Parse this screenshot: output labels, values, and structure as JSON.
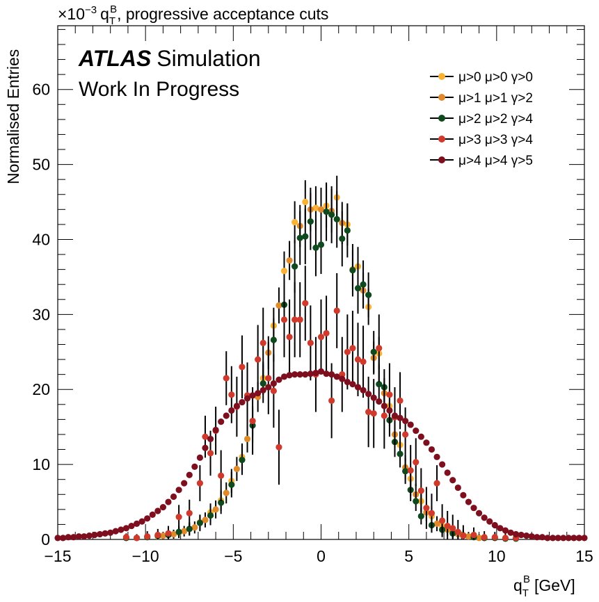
{
  "chart_data": {
    "type": "scatter",
    "title": "q_T^B, progressive acceptance cuts",
    "title_parts": {
      "scale": "×10",
      "scale_exp": "−3",
      "var": "q",
      "var_sub": "T",
      "var_sup": "B",
      "rest": ", progressive acceptance cuts"
    },
    "ylabel": "Normalised Entries",
    "xlabel": "q_T^B [GeV]",
    "xlabel_parts": {
      "var": "q",
      "var_sub": "T",
      "var_sup": "B",
      "unit": "[GeV]"
    },
    "xlim": [
      -15,
      15
    ],
    "ylim": [
      0,
      68.5
    ],
    "y_scale_note": "×10^−3",
    "x_ticks": [
      -15,
      -10,
      -5,
      0,
      5,
      10,
      15
    ],
    "x_tick_labels": [
      "−15",
      "−10",
      "−5",
      "0",
      "5",
      "10",
      "15"
    ],
    "y_ticks": [
      0,
      10,
      20,
      30,
      40,
      50,
      60
    ],
    "y_tick_labels": [
      "0",
      "10",
      "20",
      "30",
      "40",
      "50",
      "60"
    ],
    "grid": false,
    "legend_position": "top-right",
    "atlas_label": {
      "bold": "ATLAS",
      "rest": "Simulation",
      "line2": "Work In Progress"
    },
    "colors": {
      "mu0": "#f9b233",
      "mu1": "#e08a2c",
      "mu2": "#0f4a1f",
      "mu3": "#cf3a2c",
      "mu4": "#7d0f1f"
    },
    "series": [
      {
        "name": "μ>0 μ>0 γ>0",
        "color": "#f9b233",
        "x": [
          -9.3,
          -8.7,
          -8.1,
          -7.5,
          -6.9,
          -6.3,
          -5.7,
          -5.1,
          -4.5,
          -3.9,
          -3.3,
          -2.7,
          -2.1,
          -1.5,
          -0.9,
          -0.3,
          0.3,
          0.9,
          1.5,
          2.1,
          2.7,
          3.3,
          3.9,
          4.5,
          5.1,
          5.7,
          6.3,
          6.9,
          7.5,
          8.1,
          8.7,
          9.3
        ],
        "y": [
          0.4,
          0.6,
          0.9,
          1.4,
          2.3,
          3.6,
          5.2,
          7.8,
          11.0,
          15.8,
          21.5,
          28.5,
          35.8,
          42.3,
          45.0,
          44.2,
          44.5,
          45.6,
          42.0,
          36.4,
          31.0,
          24.8,
          17.8,
          12.6,
          8.1,
          5.1,
          3.1,
          1.8,
          1.0,
          0.6,
          0.4,
          0.2
        ],
        "err": [
          0.5,
          0.6,
          0.7,
          0.8,
          1.0,
          1.2,
          1.4,
          1.6,
          1.8,
          2.0,
          2.2,
          2.4,
          2.6,
          2.8,
          2.9,
          2.9,
          2.9,
          2.9,
          2.8,
          2.6,
          2.4,
          2.2,
          2.0,
          1.8,
          1.6,
          1.4,
          1.2,
          1.0,
          0.8,
          0.7,
          0.6,
          0.5
        ]
      },
      {
        "name": "μ>1 μ>1 γ>2",
        "color": "#e08a2c",
        "x": [
          -9.0,
          -8.4,
          -7.8,
          -7.2,
          -6.6,
          -6.0,
          -5.4,
          -4.8,
          -4.2,
          -3.6,
          -3.0,
          -2.4,
          -1.8,
          -1.2,
          -0.6,
          0.0,
          0.6,
          1.2,
          1.8,
          2.4,
          3.0,
          3.6,
          4.2,
          4.8,
          5.4,
          6.0,
          6.6,
          7.2,
          7.8,
          8.4,
          9.0
        ],
        "y": [
          0.5,
          0.7,
          1.1,
          1.6,
          2.6,
          4.0,
          6.2,
          9.4,
          13.4,
          19.0,
          24.9,
          31.2,
          37.2,
          41.8,
          44.0,
          44.0,
          43.8,
          42.2,
          36.0,
          33.2,
          24.2,
          19.5,
          14.0,
          9.6,
          6.0,
          3.6,
          2.1,
          1.3,
          0.7,
          0.4,
          0.2
        ],
        "err": [
          0.5,
          0.6,
          0.7,
          0.8,
          1.0,
          1.2,
          1.4,
          1.6,
          1.8,
          2.0,
          2.2,
          2.4,
          2.6,
          2.8,
          2.9,
          2.9,
          2.9,
          2.8,
          2.6,
          2.4,
          2.2,
          2.0,
          1.8,
          1.6,
          1.4,
          1.2,
          1.0,
          0.8,
          0.7,
          0.6,
          0.5
        ]
      },
      {
        "name": "μ>2 μ>2 γ>4",
        "color": "#0f4a1f",
        "x": [
          -11.1,
          -10.5,
          -9.9,
          -9.3,
          -8.7,
          -8.1,
          -7.5,
          -6.9,
          -6.3,
          -5.7,
          -5.1,
          -4.5,
          -3.9,
          -3.3,
          -2.7,
          -2.1,
          -1.5,
          -1.2,
          -0.9,
          -0.6,
          -0.3,
          0.0,
          0.3,
          0.6,
          0.9,
          1.2,
          1.5,
          1.8,
          2.1,
          2.4,
          2.7,
          3.0,
          3.3,
          3.6,
          3.9,
          4.2,
          4.5,
          4.8,
          5.1,
          5.4,
          5.7,
          6.3,
          6.9,
          7.5,
          8.1,
          8.7,
          9.3,
          9.9,
          10.5,
          11.1
        ],
        "y": [
          0.2,
          0.2,
          0.3,
          0.5,
          0.6,
          1.0,
          1.4,
          2.2,
          3.2,
          4.9,
          7.3,
          10.6,
          15.2,
          20.8,
          26.6,
          31.3,
          36.4,
          40.2,
          40.4,
          42.4,
          38.9,
          39.3,
          43.7,
          43.3,
          42.7,
          40.1,
          41.2,
          35.9,
          33.5,
          34.0,
          32.6,
          25.0,
          20.7,
          20.3,
          15.9,
          13.0,
          11.4,
          9.1,
          6.6,
          5.1,
          3.1,
          1.9,
          1.3,
          0.8,
          0.5,
          0.3,
          0.2,
          0.2,
          0.1,
          0.1
        ],
        "err": [
          0.4,
          0.4,
          0.5,
          0.6,
          0.7,
          0.8,
          0.9,
          1.1,
          1.3,
          1.5,
          1.7,
          2.0,
          2.3,
          2.6,
          2.9,
          3.2,
          3.5,
          3.6,
          3.7,
          3.8,
          3.8,
          3.9,
          3.9,
          3.8,
          3.8,
          3.7,
          3.6,
          3.5,
          3.4,
          3.2,
          3.0,
          2.8,
          2.6,
          2.4,
          2.2,
          2.0,
          1.8,
          1.7,
          1.5,
          1.3,
          1.1,
          0.9,
          0.8,
          0.7,
          0.6,
          0.5,
          0.5,
          0.4,
          0.4,
          0.4
        ]
      },
      {
        "name": "μ>3 μ>3 γ>4",
        "color": "#cf3a2c",
        "x": [
          -11.1,
          -10.5,
          -9.9,
          -9.3,
          -8.7,
          -8.1,
          -7.5,
          -6.9,
          -6.6,
          -6.3,
          -6.0,
          -5.7,
          -5.4,
          -5.1,
          -4.8,
          -4.5,
          -4.2,
          -3.9,
          -3.6,
          -3.3,
          -3.0,
          -2.7,
          -2.4,
          -2.1,
          -1.8,
          -1.5,
          -1.2,
          -0.9,
          -0.6,
          -0.3,
          0.0,
          0.3,
          0.6,
          0.9,
          1.2,
          1.5,
          1.8,
          2.1,
          2.4,
          2.7,
          3.0,
          3.3,
          3.6,
          3.9,
          4.2,
          4.5,
          4.8,
          5.1,
          5.4,
          5.7,
          6.0,
          6.3,
          6.6,
          6.9,
          7.2,
          7.5,
          7.8,
          8.1,
          8.7,
          9.3,
          9.9,
          10.5,
          11.1
        ],
        "y": [
          0.3,
          0.2,
          0.4,
          0.6,
          0.8,
          3.0,
          3.5,
          7.5,
          13.7,
          11.5,
          14.5,
          8.5,
          21.5,
          19.3,
          17.7,
          23.0,
          19.2,
          15.8,
          24.0,
          26.2,
          21.5,
          19.8,
          12.3,
          29.3,
          27.0,
          29.3,
          29.3,
          31.5,
          26.2,
          22.0,
          27.0,
          27.5,
          18.5,
          30.5,
          22.0,
          25.0,
          25.5,
          24.0,
          23.7,
          17.0,
          16.8,
          25.5,
          16.5,
          19.3,
          16.3,
          18.5,
          14.0,
          9.2,
          10.3,
          6.5,
          4.2,
          3.5,
          7.5,
          2.5,
          1.8,
          1.5,
          1.0,
          0.5,
          0.6,
          0.3,
          0.3,
          0.2,
          0.2
        ],
        "err": [
          0.5,
          0.5,
          0.7,
          0.8,
          1.0,
          1.6,
          1.8,
          2.4,
          2.8,
          3.0,
          3.2,
          3.4,
          3.6,
          3.8,
          4.0,
          4.2,
          4.4,
          4.5,
          4.6,
          4.7,
          4.8,
          4.9,
          5.0,
          5.0,
          5.0,
          5.0,
          5.0,
          5.0,
          5.0,
          5.0,
          5.0,
          5.0,
          5.0,
          5.0,
          5.0,
          5.0,
          5.0,
          4.9,
          4.8,
          4.7,
          4.6,
          4.5,
          4.4,
          4.2,
          4.0,
          3.8,
          3.6,
          3.4,
          3.2,
          3.0,
          2.8,
          2.6,
          2.4,
          2.2,
          2.0,
          1.8,
          1.6,
          1.4,
          1.0,
          0.8,
          0.7,
          0.6,
          0.5
        ]
      },
      {
        "name": "μ>4 μ>4 γ>5",
        "color": "#7d0f1f",
        "x": [
          -15.0,
          -14.7,
          -14.4,
          -14.1,
          -13.8,
          -13.5,
          -13.2,
          -12.9,
          -12.6,
          -12.3,
          -12.0,
          -11.7,
          -11.4,
          -11.1,
          -10.8,
          -10.5,
          -10.2,
          -9.9,
          -9.6,
          -9.3,
          -9.0,
          -8.7,
          -8.4,
          -8.1,
          -7.8,
          -7.5,
          -7.2,
          -6.9,
          -6.6,
          -6.3,
          -6.0,
          -5.7,
          -5.4,
          -5.1,
          -4.8,
          -4.5,
          -4.2,
          -3.9,
          -3.6,
          -3.3,
          -3.0,
          -2.7,
          -2.4,
          -2.1,
          -1.8,
          -1.5,
          -1.2,
          -0.9,
          -0.6,
          -0.3,
          0.0,
          0.3,
          0.6,
          0.9,
          1.2,
          1.5,
          1.8,
          2.1,
          2.4,
          2.7,
          3.0,
          3.3,
          3.6,
          3.9,
          4.2,
          4.5,
          4.8,
          5.1,
          5.4,
          5.7,
          6.0,
          6.3,
          6.6,
          6.9,
          7.2,
          7.5,
          7.8,
          8.1,
          8.4,
          8.7,
          9.0,
          9.3,
          9.6,
          9.9,
          10.2,
          10.5,
          10.8,
          11.1,
          11.4,
          11.7,
          12.0,
          12.3,
          12.6,
          12.9,
          13.2,
          13.5,
          13.8,
          14.1,
          14.4,
          14.7,
          15.0
        ],
        "y": [
          0.2,
          0.2,
          0.3,
          0.3,
          0.4,
          0.4,
          0.5,
          0.6,
          0.7,
          0.8,
          0.9,
          1.1,
          1.3,
          1.5,
          1.8,
          2.1,
          2.4,
          2.8,
          3.3,
          3.8,
          4.3,
          5.0,
          5.7,
          6.6,
          7.5,
          8.6,
          9.7,
          10.9,
          12.2,
          13.4,
          14.6,
          15.7,
          16.5,
          17.2,
          17.8,
          18.3,
          18.8,
          19.2,
          19.5,
          19.9,
          20.3,
          20.8,
          21.3,
          21.7,
          21.9,
          22.0,
          22.0,
          22.0,
          22.1,
          22.2,
          22.4,
          22.1,
          22.0,
          21.7,
          21.4,
          21.0,
          20.7,
          20.3,
          19.9,
          19.4,
          18.9,
          18.4,
          17.8,
          17.2,
          16.5,
          16.2,
          15.8,
          15.3,
          14.5,
          13.7,
          12.9,
          12.0,
          11.0,
          10.0,
          8.9,
          7.9,
          6.9,
          5.9,
          5.0,
          4.2,
          3.5,
          2.9,
          2.4,
          1.9,
          1.5,
          1.2,
          0.9,
          0.7,
          0.6,
          0.5,
          0.4,
          0.3,
          0.3,
          0.2,
          0.2,
          0.2,
          0.2,
          0.2,
          0.2,
          0.2,
          0.2
        ],
        "err": []
      }
    ]
  }
}
